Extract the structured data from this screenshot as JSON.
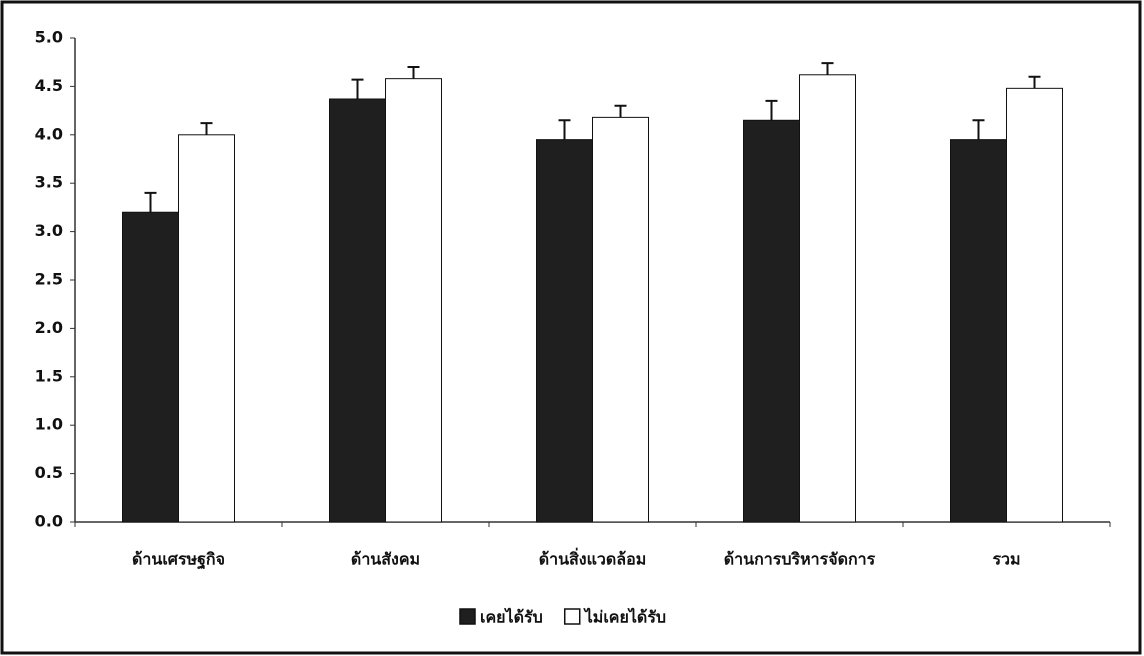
{
  "chart_data": {
    "type": "bar",
    "categories": [
      "ด้านเศรษฐกิจ",
      "ด้านสังคม",
      "ด้านสิ่งแวดล้อม",
      "ด้านการบริหารจัดการ",
      "รวม"
    ],
    "series": [
      {
        "name": "เคยได้รับ",
        "color": "#1f1f1f",
        "values": [
          3.2,
          4.37,
          3.95,
          4.15,
          3.95
        ],
        "errors": [
          0.2,
          0.2,
          0.2,
          0.2,
          0.2
        ]
      },
      {
        "name": "ไม่เคยได้รับ",
        "color": "#ffffff",
        "values": [
          4.0,
          4.58,
          4.18,
          4.62,
          4.48
        ],
        "errors": [
          0.12,
          0.12,
          0.12,
          0.12,
          0.12
        ]
      }
    ],
    "ylim": [
      0,
      5
    ],
    "yticks": [
      {
        "value": 0,
        "label": "0.0"
      },
      {
        "value": 0.5,
        "label": "0.5"
      },
      {
        "value": 1,
        "label": "1.0"
      },
      {
        "value": 1.5,
        "label": "1.5"
      },
      {
        "value": 2,
        "label": "2.0"
      },
      {
        "value": 2.5,
        "label": "2.5"
      },
      {
        "value": 3,
        "label": "3.0"
      },
      {
        "value": 3.5,
        "label": "3.5"
      },
      {
        "value": 4,
        "label": "4.0"
      },
      {
        "value": 4.5,
        "label": "4.5"
      },
      {
        "value": 5,
        "label": "5.0"
      }
    ],
    "grid": false,
    "legend": "bottom"
  }
}
